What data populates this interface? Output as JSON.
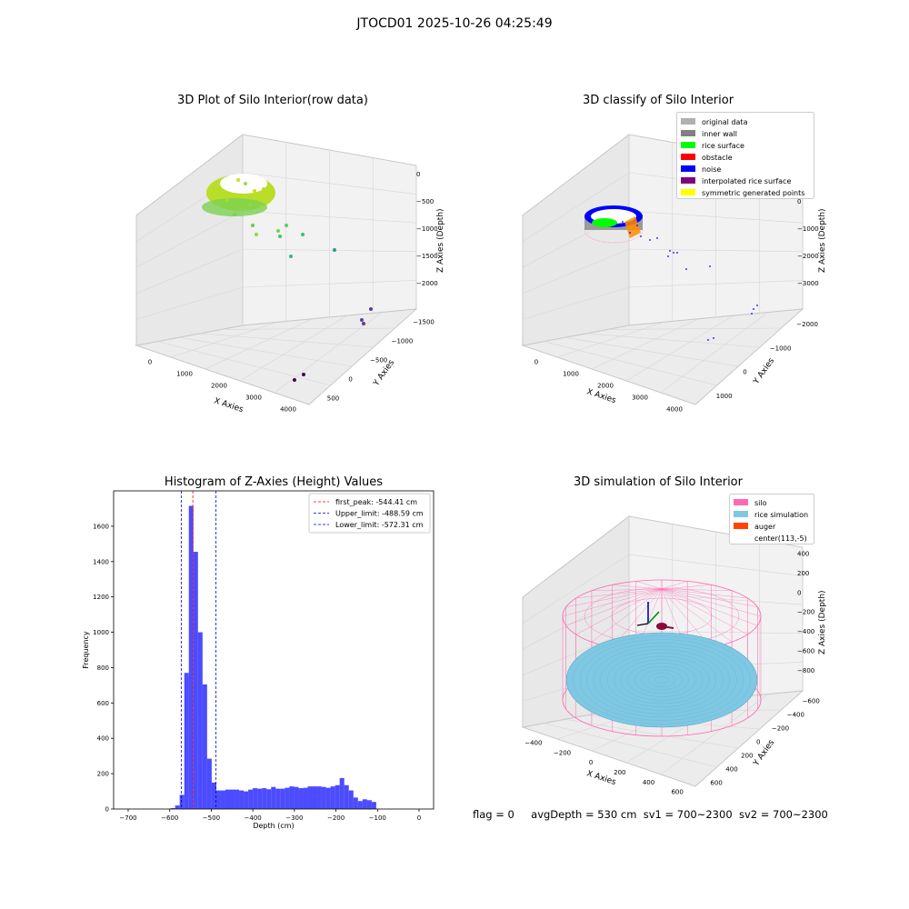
{
  "suptitle": "JTOCD01 2025-10-26 04:25:49",
  "colors": {
    "pane_face": "#f2f2f2",
    "pane_side": "#e6e6e6",
    "pane_floor": "#ececec",
    "grid": "#d0d0d0",
    "hist_bar": "#0000ff",
    "silo": "#ff69b4",
    "rice": "#7ec8e3",
    "auger": "#ff4500",
    "first_peak_line": "#ff0000",
    "limit_line": "#0000cc"
  },
  "raw_plot": {
    "title": "3D Plot of Silo Interior(row data)",
    "xlabel": "X Axies",
    "ylabel": "Y Axies",
    "zlabel": "Z Axies (Depth)",
    "x_ticks": [
      "0",
      "1000",
      "2000",
      "3000",
      "4000"
    ],
    "y_ticks": [
      "500",
      "0",
      "−500",
      "−1000",
      "−1500"
    ],
    "z_ticks": [
      "0",
      "−500",
      "−1000",
      "−1500",
      "−2000"
    ],
    "colormap": "viridis"
  },
  "classify_plot": {
    "title": "3D classify of Silo Interior",
    "xlabel": "X Axies",
    "ylabel": "Y Axies",
    "zlabel": "Z Axies (Depth)",
    "x_ticks": [
      "0",
      "1000",
      "2000",
      "3000",
      "4000"
    ],
    "y_ticks": [
      "1000",
      "0",
      "−1000",
      "−2000"
    ],
    "z_ticks": [
      "1000",
      "0",
      "−1000",
      "−2000",
      "−3000"
    ],
    "legend": [
      {
        "label": "original data",
        "color": "#b0b0b0"
      },
      {
        "label": "inner wall",
        "color": "#808080"
      },
      {
        "label": "rice surface",
        "color": "#00ff00"
      },
      {
        "label": "obstacle",
        "color": "#ff0000"
      },
      {
        "label": "noise",
        "color": "#0000ff"
      },
      {
        "label": "interpolated rice surface",
        "color": "#800080"
      },
      {
        "label": "symmetric generated points",
        "color": "#ffff00"
      }
    ]
  },
  "histogram": {
    "title": "Histogram of Z-Axies (Height) Values",
    "xlabel": "Depth (cm)",
    "ylabel": "Frequency",
    "legend": [
      {
        "label": "first_peak: -544.41 cm",
        "value": -544.41,
        "color": "#ff0000"
      },
      {
        "label": "Upper_limit: -488.59 cm",
        "value": -488.59,
        "color": "#0000cc"
      },
      {
        "label": "Lower_limit: -572.31 cm",
        "value": -572.31,
        "color": "#0000cc"
      }
    ]
  },
  "chart_data": {
    "type": "bar",
    "title": "Histogram of Z-Axies (Height) Values",
    "xlabel": "Depth (cm)",
    "ylabel": "Frequency",
    "xlim": [
      -735,
      35
    ],
    "ylim": [
      0,
      1800
    ],
    "x_ticks": [
      -700,
      -600,
      -500,
      -400,
      -300,
      -200,
      -100,
      0
    ],
    "y_ticks": [
      0,
      200,
      400,
      600,
      800,
      1000,
      1200,
      1400,
      1600
    ],
    "bin_width": 11,
    "bins_start": [
      -598,
      -587,
      -576,
      -565,
      -554,
      -543,
      -532,
      -521,
      -510,
      -499,
      -488,
      -477,
      -466,
      -455,
      -444,
      -433,
      -422,
      -411,
      -400,
      -389,
      -378,
      -367,
      -356,
      -345,
      -334,
      -323,
      -312,
      -301,
      -290,
      -279,
      -268,
      -257,
      -246,
      -235,
      -224,
      -213,
      -202,
      -191,
      -180,
      -169,
      -158,
      -147,
      -136,
      -125,
      -114,
      -103,
      -92,
      -81,
      -70,
      -59,
      -48,
      -37,
      -26
    ],
    "values": [
      5,
      20,
      80,
      770,
      1715,
      1455,
      1000,
      705,
      285,
      150,
      105,
      105,
      110,
      110,
      110,
      105,
      100,
      110,
      118,
      115,
      118,
      112,
      125,
      115,
      115,
      120,
      128,
      125,
      118,
      120,
      128,
      128,
      128,
      125,
      120,
      128,
      135,
      175,
      135,
      105,
      65,
      45,
      55,
      50,
      40,
      0,
      0,
      0,
      0,
      0,
      0,
      0,
      0
    ]
  },
  "sim_plot": {
    "title": "3D simulation of Silo Interior",
    "xlabel": "X Axies",
    "ylabel": "Y Axies",
    "zlabel": "Z Axies (Depth)",
    "x_ticks": [
      "−400",
      "−200",
      "0",
      "200",
      "400",
      "600"
    ],
    "y_ticks": [
      "600",
      "400",
      "200",
      "0",
      "−200",
      "−400",
      "−600"
    ],
    "z_ticks": [
      "400",
      "200",
      "0",
      "−200",
      "−400",
      "−600",
      "−800"
    ],
    "legend": [
      {
        "label": "silo",
        "color": "#ff69b4"
      },
      {
        "label": "rice simulation",
        "color": "#7ec8e3"
      },
      {
        "label": "auger",
        "color": "#ff4500"
      },
      {
        "label": "center(113,-5)",
        "color": ""
      }
    ]
  },
  "footer": {
    "flag": "flag = 0",
    "avg_depth": "avgDepth = 530 cm",
    "sv1": "sv1 = 700~2300",
    "sv2": "sv2 = 700~2300"
  }
}
